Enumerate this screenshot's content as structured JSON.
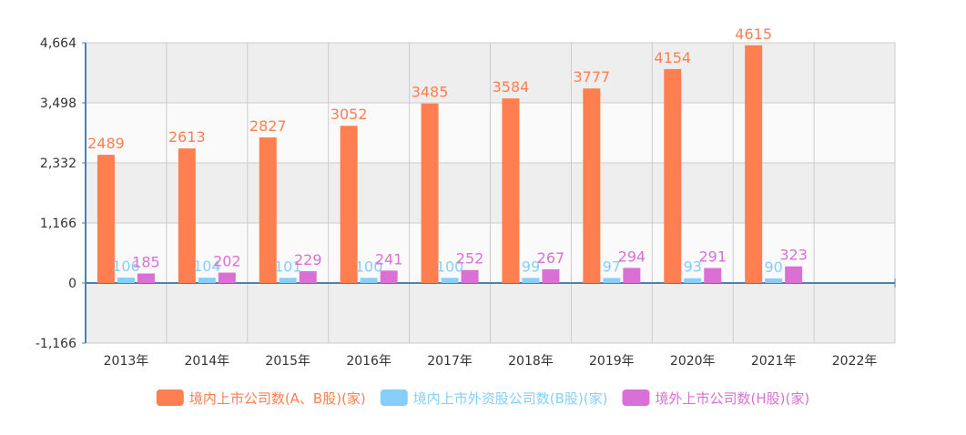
{
  "chart_data": {
    "type": "bar",
    "categories": [
      "2013年",
      "2014年",
      "2015年",
      "2016年",
      "2017年",
      "2018年",
      "2019年",
      "2020年",
      "2021年",
      "2022年"
    ],
    "series": [
      {
        "name": "境内上市公司数(A、B股)(家)",
        "color": "#ff7f50",
        "values": [
          2489,
          2613,
          2827,
          3052,
          3485,
          3584,
          3777,
          4154,
          4615,
          null
        ]
      },
      {
        "name": "境内上市外资股公司数(B股)(家)",
        "color": "#87cefa",
        "values": [
          106,
          104,
          101,
          100,
          100,
          99,
          97,
          93,
          90,
          null
        ]
      },
      {
        "name": "境外上市公司数(H股)(家)",
        "color": "#da70d6",
        "values": [
          185,
          202,
          229,
          241,
          252,
          267,
          294,
          291,
          323,
          null
        ]
      }
    ],
    "yticks": [
      "4,664",
      "3,498",
      "2,332",
      "1,166",
      "0",
      "-1,166"
    ],
    "ylim": [
      -1166,
      4664
    ],
    "grid": true,
    "legend_position": "bottom-center"
  }
}
